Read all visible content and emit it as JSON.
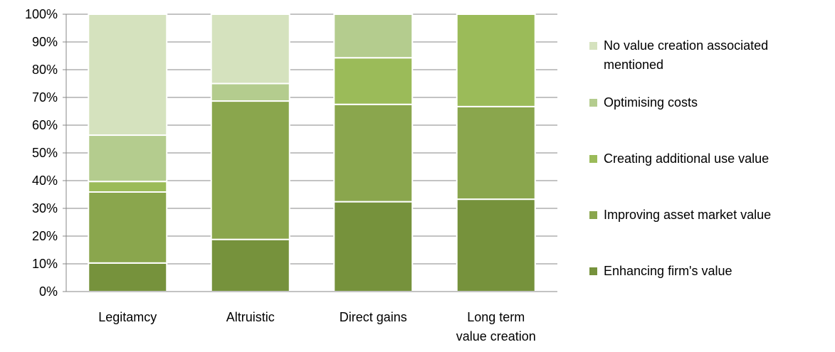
{
  "chart_data": {
    "type": "bar",
    "stacked": true,
    "percent": true,
    "title": "",
    "xlabel": "",
    "ylabel": "",
    "ylim": [
      0,
      100
    ],
    "y_ticks": [
      "0%",
      "10%",
      "20%",
      "30%",
      "40%",
      "50%",
      "60%",
      "70%",
      "80%",
      "90%",
      "100%"
    ],
    "categories": [
      [
        "Legitamcy"
      ],
      [
        "Altruistic"
      ],
      [
        "Direct gains"
      ],
      [
        "Long term",
        "value creation"
      ]
    ],
    "series": [
      {
        "name": "Enhancing firm's value",
        "color": "#76923c",
        "values": [
          10.3,
          18.8,
          32.4,
          33.3
        ]
      },
      {
        "name": "Improving asset market value",
        "color": "#8aa64d",
        "values": [
          25.6,
          49.9,
          35.1,
          33.4
        ]
      },
      {
        "name": "Creating additional use value",
        "color": "#9bbb59",
        "values": [
          3.8,
          0,
          16.8,
          33.3
        ]
      },
      {
        "name": "Optimising costs",
        "color": "#b4cc8e",
        "values": [
          16.7,
          6.3,
          15.7,
          0
        ]
      },
      {
        "name": "No value creation associated mentioned",
        "color": "#d5e2be",
        "values": [
          43.6,
          25.0,
          0,
          0
        ]
      }
    ],
    "legend": {
      "position": "right",
      "entries": [
        {
          "lines": [
            "No value creation associated",
            "mentioned"
          ],
          "color": "#d5e2be"
        },
        {
          "lines": [
            "Optimising costs"
          ],
          "color": "#b4cc8e"
        },
        {
          "lines": [
            "Creating additional use value"
          ],
          "color": "#9bbb59"
        },
        {
          "lines": [
            "Improving asset market value"
          ],
          "color": "#8aa64d"
        },
        {
          "lines": [
            "Enhancing firm's value"
          ],
          "color": "#76923c"
        }
      ]
    },
    "grid": true
  }
}
